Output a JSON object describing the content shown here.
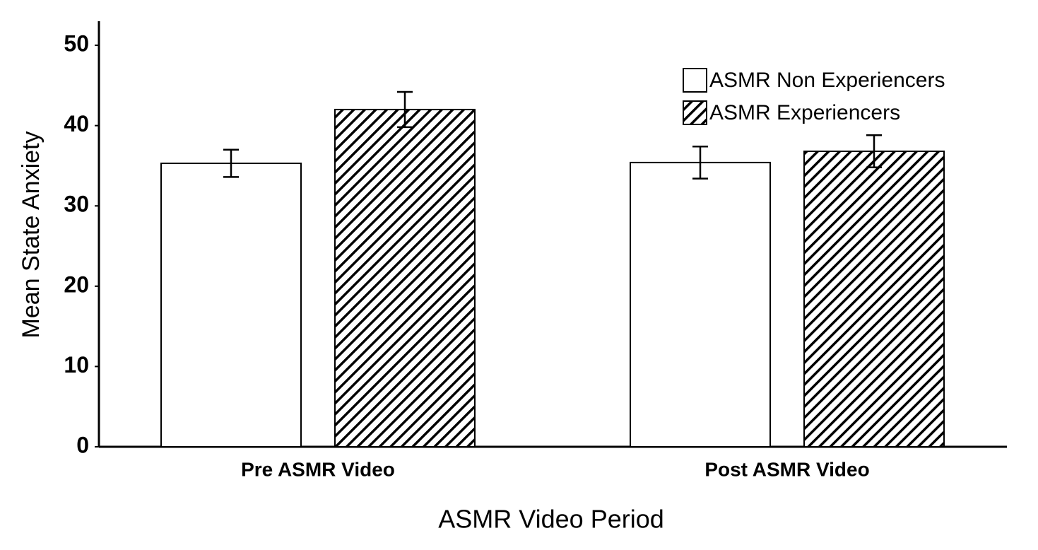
{
  "chart_data": {
    "type": "bar",
    "x_label": "ASMR Video Period",
    "y_label": "Mean State Anxiety",
    "categories": [
      "Pre ASMR Video",
      "Post ASMR Video"
    ],
    "series": [
      {
        "name": "ASMR Non Experiencers",
        "color": "#ffffff",
        "hatch": false,
        "values": [
          35.3,
          35.4
        ],
        "errors": [
          1.7,
          2.0
        ]
      },
      {
        "name": "ASMR Experiencers",
        "color": "#ffffff",
        "hatch": true,
        "values": [
          42.0,
          36.8
        ],
        "errors": [
          2.2,
          2.0
        ]
      }
    ],
    "ylim": [
      0,
      53
    ],
    "yticks": [
      0,
      10,
      20,
      30,
      40,
      50
    ],
    "grid": false,
    "legend": "top-right"
  }
}
